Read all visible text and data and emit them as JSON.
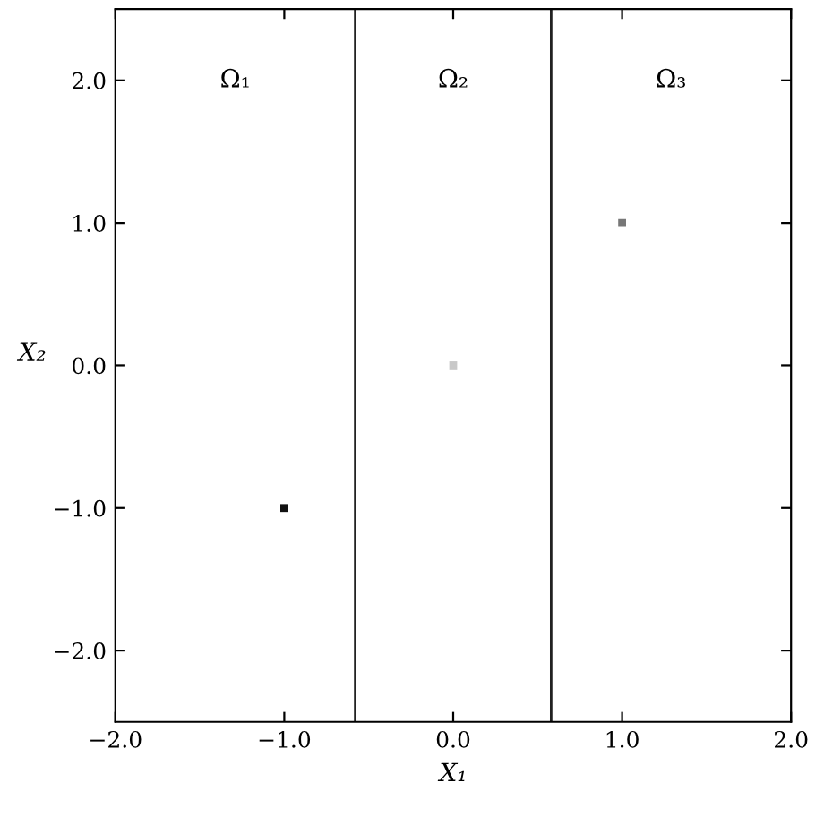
{
  "chart_data": {
    "type": "scatter",
    "xlabel": "X₁",
    "ylabel": "X₂",
    "x": [
      -1.0,
      0.0,
      1.0
    ],
    "values": [
      -1.0,
      0.0,
      1.0
    ],
    "colors": [
      "#111111",
      "#c8c8c8",
      "#777777"
    ],
    "marker": "square",
    "xlim": [
      -2.0,
      2.0
    ],
    "ylim": [
      -2.5,
      2.5
    ],
    "xticks": [
      {
        "value": -2,
        "label": "−2.0"
      },
      {
        "value": -1,
        "label": "−1.0"
      },
      {
        "value": 0,
        "label": "0.0"
      },
      {
        "value": 1,
        "label": "1.0"
      },
      {
        "value": 2,
        "label": "2.0"
      }
    ],
    "yticks": [
      {
        "value": -2,
        "label": "−2.0"
      },
      {
        "value": -1,
        "label": "−1.0"
      },
      {
        "value": 0,
        "label": "0.0"
      },
      {
        "value": 1,
        "label": "1.0"
      },
      {
        "value": 2,
        "label": "2.0"
      }
    ],
    "ref_lines": [
      {
        "axis": "x",
        "value": -0.58,
        "color": "#222222"
      },
      {
        "axis": "x",
        "value": 0.58,
        "color": "#222222"
      }
    ],
    "annotations": [
      "Ω₁",
      "Ω₂",
      "Ω₃"
    ],
    "grid": false,
    "legend": false
  }
}
